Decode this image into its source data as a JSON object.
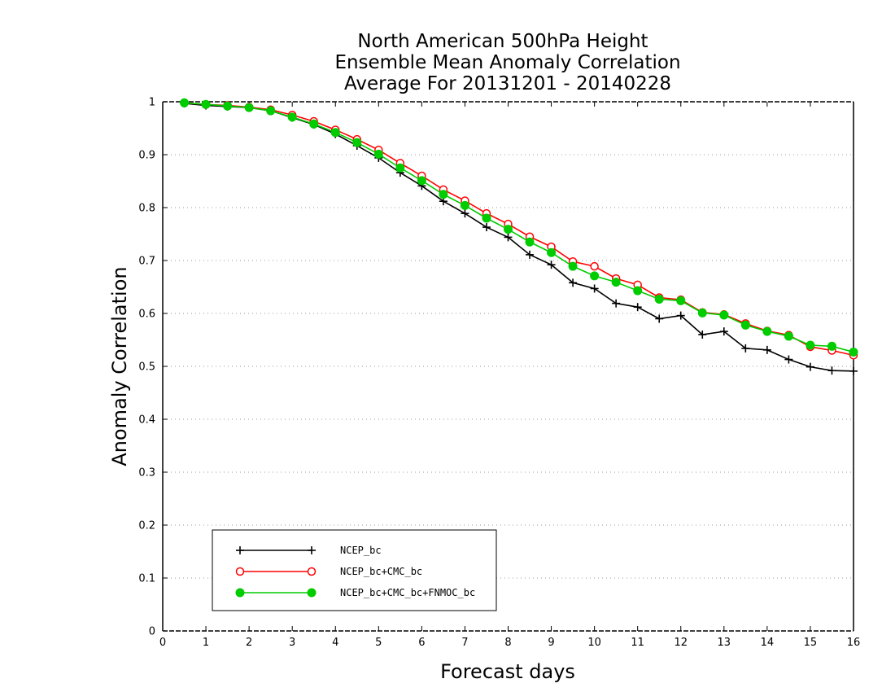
{
  "chart_data": {
    "type": "line",
    "title_lines": [
      "North American 500hPa Height",
      "Ensemble Mean Anomaly Correlation",
      "Average For 20131201 - 20140228"
    ],
    "xlabel": "Forecast days",
    "ylabel": "Anomaly Correlation",
    "xlim": [
      0,
      16
    ],
    "ylim": [
      0,
      1
    ],
    "x_ticks": [
      0,
      1,
      2,
      3,
      4,
      5,
      6,
      7,
      8,
      9,
      10,
      11,
      12,
      13,
      14,
      15,
      16
    ],
    "x_tick_labels": [
      "0",
      "1",
      "2",
      "3",
      "4",
      "5",
      "6",
      "7",
      "8",
      "9",
      "10",
      "11",
      "12",
      "13",
      "14",
      "15",
      "16"
    ],
    "y_ticks": [
      0,
      0.1,
      0.2,
      0.3,
      0.4,
      0.5,
      0.6,
      0.7,
      0.8,
      0.9,
      1
    ],
    "y_tick_labels": [
      "0",
      "0.1",
      "0.2",
      "0.3",
      "0.4",
      "0.5",
      "0.6",
      "0.7",
      "0.8",
      "0.9",
      "1"
    ],
    "grid": "horizontal dotted",
    "legend_position": "bottom-left",
    "x": [
      0.5,
      1.0,
      1.5,
      2.0,
      2.5,
      3.0,
      3.5,
      4.0,
      4.5,
      5.0,
      5.5,
      6.0,
      6.5,
      7.0,
      7.5,
      8.0,
      8.5,
      9.0,
      9.5,
      10.0,
      10.5,
      11.0,
      11.5,
      12.0,
      12.5,
      13.0,
      13.5,
      14.0,
      14.5,
      15.0,
      15.5,
      16.0
    ],
    "series": [
      {
        "name": "NCEP_bc",
        "color": "#000000",
        "marker": "plus",
        "values": [
          0.997,
          0.993,
          0.991,
          0.989,
          0.983,
          0.97,
          0.957,
          0.939,
          0.917,
          0.894,
          0.866,
          0.841,
          0.812,
          0.789,
          0.763,
          0.744,
          0.711,
          0.692,
          0.658,
          0.647,
          0.619,
          0.612,
          0.59,
          0.596,
          0.56,
          0.566,
          0.534,
          0.531,
          0.513,
          0.499,
          0.492,
          0.491
        ]
      },
      {
        "name": "NCEP_bc+CMC_bc",
        "color": "#ff0000",
        "marker": "open-circle",
        "values": [
          0.998,
          0.995,
          0.993,
          0.99,
          0.985,
          0.975,
          0.963,
          0.947,
          0.929,
          0.909,
          0.884,
          0.86,
          0.834,
          0.813,
          0.789,
          0.769,
          0.745,
          0.726,
          0.698,
          0.689,
          0.666,
          0.654,
          0.63,
          0.626,
          0.602,
          0.598,
          0.581,
          0.567,
          0.559,
          0.537,
          0.53,
          0.521
        ]
      },
      {
        "name": "NCEP_bc+CMC_bc+FNMOC_bc",
        "color": "#00cc00",
        "marker": "filled-circle",
        "values": [
          0.998,
          0.995,
          0.992,
          0.989,
          0.983,
          0.971,
          0.958,
          0.942,
          0.923,
          0.901,
          0.875,
          0.851,
          0.825,
          0.804,
          0.78,
          0.759,
          0.735,
          0.715,
          0.689,
          0.671,
          0.659,
          0.643,
          0.627,
          0.624,
          0.601,
          0.597,
          0.578,
          0.566,
          0.557,
          0.54,
          0.538,
          0.527
        ]
      }
    ]
  }
}
